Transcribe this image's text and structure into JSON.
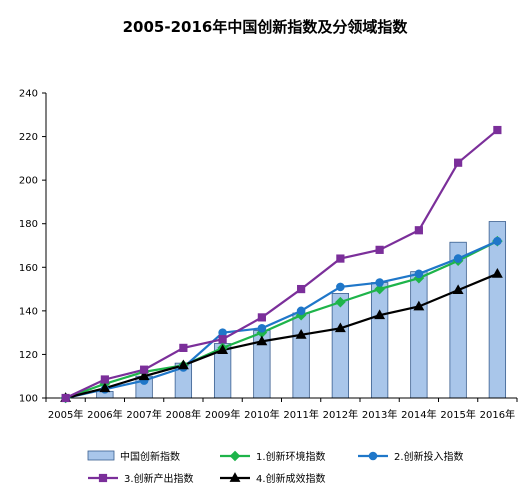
{
  "chart_data": {
    "type": "bar+line",
    "title": "2005-2016年中国创新指数及分领域指数",
    "categories": [
      "2005年",
      "2006年",
      "2007年",
      "2008年",
      "2009年",
      "2010年",
      "2011年",
      "2012年",
      "2013年",
      "2014年",
      "2015年",
      "2016年"
    ],
    "ylim": [
      100,
      240
    ],
    "yticks": [
      100,
      120,
      140,
      160,
      180,
      200,
      220,
      240
    ],
    "grid": false,
    "legend_position": "bottom",
    "bars": {
      "name": "中国创新指数",
      "color": "#a9c6ea",
      "values": [
        100,
        103,
        110,
        116,
        125,
        131,
        139,
        148,
        153,
        158,
        171.5,
        181
      ]
    },
    "series": [
      {
        "name": "1.创新环境指数",
        "color": "#1eb44a",
        "marker": "diamond",
        "values": [
          100,
          106.5,
          112,
          115,
          123,
          130,
          138,
          144,
          150,
          155,
          163,
          172
        ]
      },
      {
        "name": "2.创新投入指数",
        "color": "#1f77c9",
        "marker": "circle",
        "values": [
          100,
          104,
          108,
          114,
          130,
          132,
          140,
          151,
          153,
          157,
          164,
          172
        ]
      },
      {
        "name": "3.创新产出指数",
        "color": "#7b2f9a",
        "marker": "square",
        "values": [
          100,
          108.5,
          113,
          123,
          127,
          137,
          150,
          164,
          168,
          177,
          208,
          223
        ]
      },
      {
        "name": "4.创新成效指数",
        "color": "#000000",
        "marker": "triangle",
        "values": [
          100,
          104.5,
          110,
          115,
          122,
          126,
          129,
          132,
          138,
          142,
          149.5,
          157
        ]
      }
    ]
  }
}
